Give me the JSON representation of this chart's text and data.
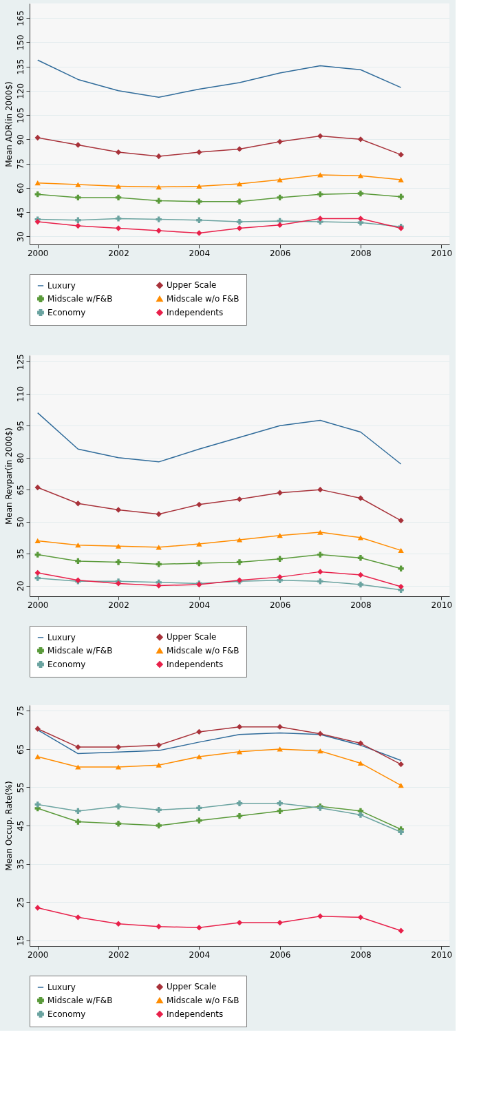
{
  "chart_data": [
    {
      "type": "line",
      "ylabel": "Mean ADR(in 2000$)",
      "x": [
        2000,
        2001,
        2002,
        2003,
        2004,
        2005,
        2006,
        2007,
        2008,
        2009
      ],
      "xlim": [
        1999.8,
        2010.2
      ],
      "xticks": [
        2000,
        2002,
        2004,
        2006,
        2008,
        2010
      ],
      "ylim": [
        25,
        174
      ],
      "yticks": [
        30,
        45,
        60,
        75,
        90,
        105,
        120,
        135,
        150,
        165
      ],
      "grid": "y",
      "legend": "bottom",
      "line_style": "solid",
      "series": [
        {
          "name": "Luxury",
          "color": "#2f6b9a",
          "marker": "none",
          "values": [
            139,
            127,
            120,
            116,
            121,
            125,
            131,
            135.5,
            133,
            122
          ]
        },
        {
          "name": "Upper Scale",
          "color": "#a8323a",
          "marker": "diamond",
          "values": [
            91,
            86.5,
            82,
            79.5,
            82,
            84,
            88.5,
            92,
            90,
            80.5
          ]
        },
        {
          "name": "Midscale w/F&B",
          "color": "#5a9a3a",
          "marker": "cross",
          "values": [
            56,
            54,
            54,
            52,
            51.5,
            51.5,
            54,
            56,
            56.5,
            54.5
          ]
        },
        {
          "name": "Midscale w/o F&B",
          "color": "#ff8c00",
          "marker": "triangle",
          "values": [
            63,
            62,
            61,
            60.5,
            61,
            62.5,
            65,
            68,
            67.5,
            65
          ]
        },
        {
          "name": "Economy",
          "color": "#6aa3a0",
          "marker": "cross",
          "values": [
            40.5,
            40,
            41,
            40.5,
            40,
            39,
            39.5,
            39,
            38.5,
            36
          ]
        },
        {
          "name": "Independents",
          "color": "#e8204a",
          "marker": "diamond",
          "values": [
            39,
            36.5,
            35,
            33.5,
            32,
            35,
            37,
            41,
            41,
            35
          ]
        }
      ]
    },
    {
      "type": "line",
      "ylabel": "Mean Revpar(in 2000$)",
      "x": [
        2000,
        2001,
        2002,
        2003,
        2004,
        2005,
        2006,
        2007,
        2008,
        2009
      ],
      "xlim": [
        1999.8,
        2010.2
      ],
      "xticks": [
        2000,
        2002,
        2004,
        2006,
        2008,
        2010
      ],
      "ylim": [
        15,
        128
      ],
      "yticks": [
        20,
        35,
        50,
        65,
        80,
        95,
        110,
        125
      ],
      "grid": "y",
      "legend": "bottom",
      "line_style": "solid",
      "series": [
        {
          "name": "Luxury",
          "color": "#2f6b9a",
          "marker": "none",
          "values": [
            101,
            84,
            80,
            78,
            84,
            89.5,
            95,
            97.5,
            92,
            77
          ]
        },
        {
          "name": "Upper Scale",
          "color": "#a8323a",
          "marker": "diamond",
          "values": [
            66,
            58.5,
            55.5,
            53.5,
            58,
            60.5,
            63.5,
            65,
            61,
            50.5
          ]
        },
        {
          "name": "Midscale w/F&B",
          "color": "#5a9a3a",
          "marker": "cross",
          "values": [
            34.5,
            31.5,
            31,
            30,
            30.5,
            31,
            32.5,
            34.5,
            33,
            28
          ]
        },
        {
          "name": "Midscale w/o F&B",
          "color": "#ff8c00",
          "marker": "triangle",
          "values": [
            41,
            39,
            38.5,
            38,
            39.5,
            41.5,
            43.5,
            45,
            42.5,
            36.5
          ]
        },
        {
          "name": "Economy",
          "color": "#6aa3a0",
          "marker": "cross",
          "values": [
            23.5,
            22,
            22,
            21.5,
            21,
            22,
            22.5,
            22,
            20.5,
            18
          ]
        },
        {
          "name": "Independents",
          "color": "#e8204a",
          "marker": "diamond",
          "values": [
            26,
            22.5,
            21,
            20,
            20.5,
            22.5,
            24,
            26.5,
            25,
            19.5
          ]
        }
      ]
    },
    {
      "type": "line",
      "ylabel": "Mean Occup. Rate(%)",
      "x": [
        2000,
        2001,
        2002,
        2003,
        2004,
        2005,
        2006,
        2007,
        2008,
        2009
      ],
      "xlim": [
        1999.8,
        2010.2
      ],
      "xticks": [
        2000,
        2002,
        2004,
        2006,
        2008,
        2010
      ],
      "ylim": [
        13.5,
        76.5
      ],
      "yticks": [
        15,
        25,
        35,
        45,
        55,
        65,
        75
      ],
      "grid": "y",
      "legend": "bottom",
      "line_style": "solid",
      "series": [
        {
          "name": "Luxury",
          "color": "#2f6b9a",
          "marker": "none",
          "values": [
            70,
            63.8,
            64.2,
            64.6,
            66.8,
            68.8,
            69.2,
            68.8,
            66,
            62
          ]
        },
        {
          "name": "Upper Scale",
          "color": "#a8323a",
          "marker": "diamond",
          "values": [
            70.3,
            65.5,
            65.5,
            66,
            69.5,
            70.8,
            70.8,
            69,
            66.5,
            61
          ]
        },
        {
          "name": "Midscale w/F&B",
          "color": "#5a9a3a",
          "marker": "cross",
          "values": [
            49.5,
            46,
            45.5,
            45,
            46.3,
            47.5,
            48.8,
            50,
            48.8,
            44
          ]
        },
        {
          "name": "Midscale w/o F&B",
          "color": "#ff8c00",
          "marker": "triangle",
          "values": [
            63,
            60.3,
            60.3,
            60.8,
            63,
            64.3,
            65,
            64.5,
            61.3,
            55.5
          ]
        },
        {
          "name": "Economy",
          "color": "#6aa3a0",
          "marker": "cross",
          "values": [
            50.5,
            48.8,
            50,
            49.1,
            49.6,
            50.8,
            50.8,
            49.6,
            47.8,
            43.3
          ]
        },
        {
          "name": "Independents",
          "color": "#e8204a",
          "marker": "diamond",
          "values": [
            23.5,
            21,
            19.3,
            18.6,
            18.3,
            19.6,
            19.6,
            21.3,
            21,
            17.5
          ]
        }
      ]
    }
  ]
}
